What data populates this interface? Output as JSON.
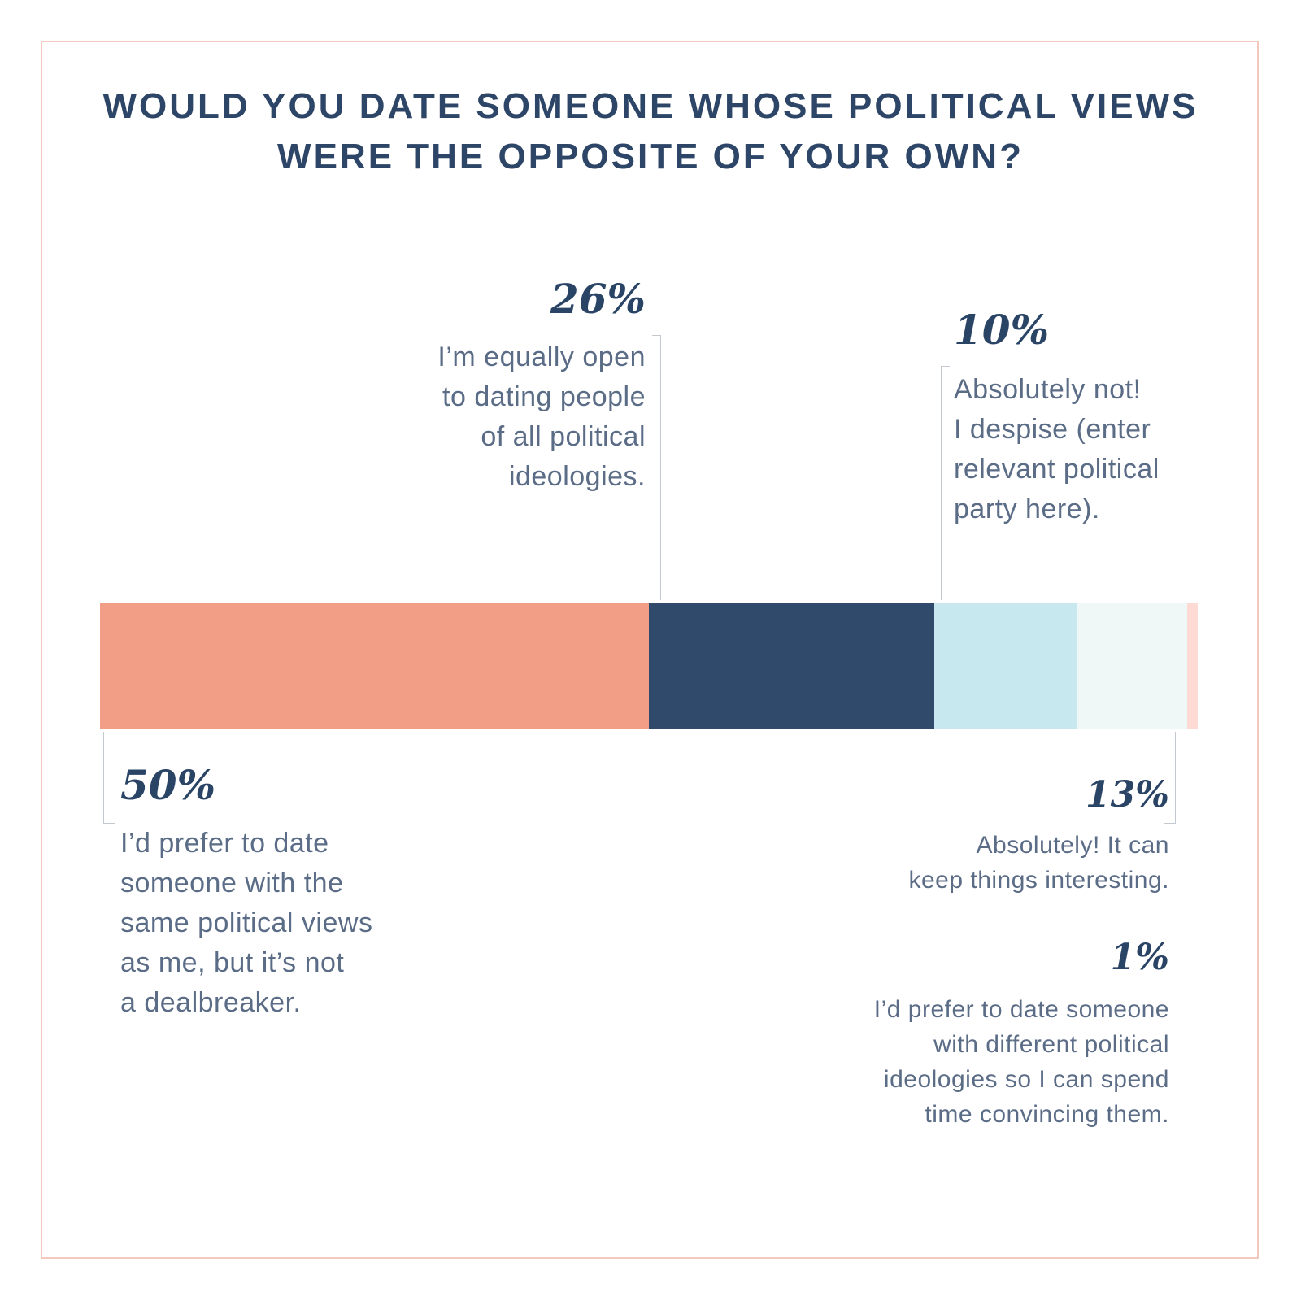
{
  "chart_data": {
    "type": "bar",
    "orientation": "horizontal-stacked",
    "title": "WOULD YOU DATE SOMEONE WHOSE POLITICAL VIEWS WERE THE OPPOSITE OF YOUR OWN?",
    "title_lines": [
      "WOULD YOU DATE SOMEONE WHOSE POLITICAL VIEWS",
      "WERE THE OPPOSITE OF YOUR OWN?"
    ],
    "xlim": [
      0,
      100
    ],
    "unit": "%",
    "segments": [
      {
        "name": "prefer-same",
        "value": 50,
        "color": "#f29e86",
        "pct_label": "50%",
        "lines": [
          "I’d prefer to date",
          "someone with the",
          "same political views",
          "as me, but it’s not",
          "a dealbreaker."
        ]
      },
      {
        "name": "equally-open",
        "value": 26,
        "color": "#2f4a6b",
        "pct_label": "26%",
        "lines": [
          "I’m equally open",
          "to dating people",
          "of all political",
          "ideologies."
        ]
      },
      {
        "name": "absolutely-yes",
        "value": 13,
        "color": "#c6e8ee",
        "pct_label": "13%",
        "lines": [
          "Absolutely! It can",
          "keep things interesting."
        ]
      },
      {
        "name": "absolutely-not",
        "value": 10,
        "color": "#eff8f7",
        "pct_label": "10%",
        "lines": [
          "Absolutely not!",
          "I despise (enter",
          "relevant political",
          "party here)."
        ]
      },
      {
        "name": "prefer-different",
        "value": 1,
        "color": "#fddad3",
        "pct_label": "1%",
        "lines": [
          "I’d prefer to date someone",
          "with different political",
          "ideologies so I can spend",
          "time convincing them."
        ]
      }
    ]
  }
}
